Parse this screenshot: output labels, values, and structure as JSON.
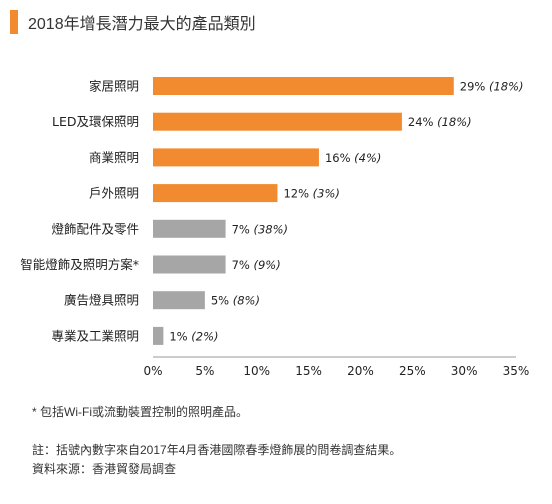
{
  "title": "2018年增長潛力最大的產品類別",
  "colors": {
    "accent": "#f28a30",
    "highlight": "#f28a30",
    "muted": "#a6a6a6"
  },
  "chart_data": {
    "type": "bar",
    "orientation": "horizontal",
    "categories": [
      "家居照明",
      "LED及環保照明",
      "商業照明",
      "戶外照明",
      "燈飾配件及零件",
      "智能燈飾及照明方案*",
      "廣告燈具照明",
      "專業及工業照明"
    ],
    "values": [
      29,
      24,
      16,
      12,
      7,
      7,
      5,
      1
    ],
    "data_labels": [
      "29% (18%)",
      "24% (18%)",
      "16% (4%)",
      "12% (3%)",
      "7% (38%)",
      "7% (9%)",
      "5% (8%)",
      "1% (2%)"
    ],
    "label_primary": [
      "29%",
      "24%",
      "16%",
      "12%",
      "7%",
      "7%",
      "5%",
      "1%"
    ],
    "label_secondary": [
      "(18%)",
      "(18%)",
      "(4%)",
      "(3%)",
      "(38%)",
      "(9%)",
      "(8%)",
      "(2%)"
    ],
    "highlighted": [
      true,
      true,
      true,
      true,
      false,
      false,
      false,
      false
    ],
    "xlim": [
      0,
      35
    ],
    "xticks": [
      "0%",
      "5%",
      "10%",
      "15%",
      "20%",
      "25%",
      "30%",
      "35%"
    ],
    "grid": false,
    "legend": "none"
  },
  "footnote": "* 包括Wi-Fi或流動裝置控制的照明產品。",
  "note": "註：括號內數字來自2017年4月香港國際春季燈飾展的問卷調查結果。",
  "source": "資料來源：香港貿發局調查"
}
